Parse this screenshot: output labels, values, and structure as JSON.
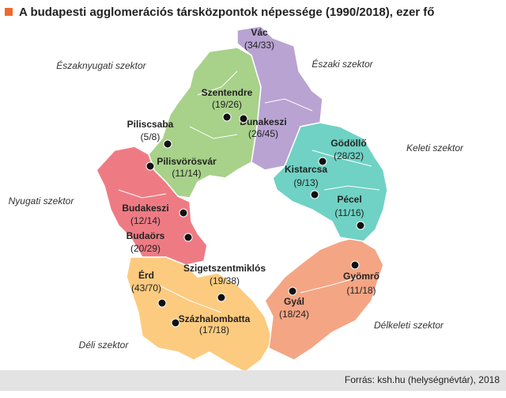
{
  "header": {
    "title": "A budapesti agglomerációs társközpontok népessége (1990/2018), ezer fő"
  },
  "sectors": [
    "Északnyugati szektor",
    "Északi szektor",
    "Keleti szektor",
    "Nyugati szektor",
    "Délkeleti szektor",
    "Déli szektor"
  ],
  "towns": [
    {
      "name": "Vác",
      "label": "(34/33)"
    },
    {
      "name": "Szentendre",
      "label": "(19/26)"
    },
    {
      "name": "Dunakeszi",
      "label": "(26/45)"
    },
    {
      "name": "Piliscsaba",
      "label": "(5/8)"
    },
    {
      "name": "Pilisvörösvár",
      "label": "(11/14)"
    },
    {
      "name": "Gödöllő",
      "label": "(28/32)"
    },
    {
      "name": "Kistarcsa",
      "label": "(9/13)"
    },
    {
      "name": "Pécel",
      "label": "(11/16)"
    },
    {
      "name": "Budakeszi",
      "label": "(12/14)"
    },
    {
      "name": "Budaörs",
      "label": "(20/29)"
    },
    {
      "name": "Érd",
      "label": "(43/70)"
    },
    {
      "name": "Szigetszentmiklós",
      "label": "(19/38)"
    },
    {
      "name": "Százhalombatta",
      "label": "(17/18)"
    },
    {
      "name": "Gyál",
      "label": "(18/24)"
    },
    {
      "name": "Gyömrő",
      "label": "(11/18)"
    }
  ],
  "source": "Forrás: ksh.hu (helységnévtár), 2018"
}
